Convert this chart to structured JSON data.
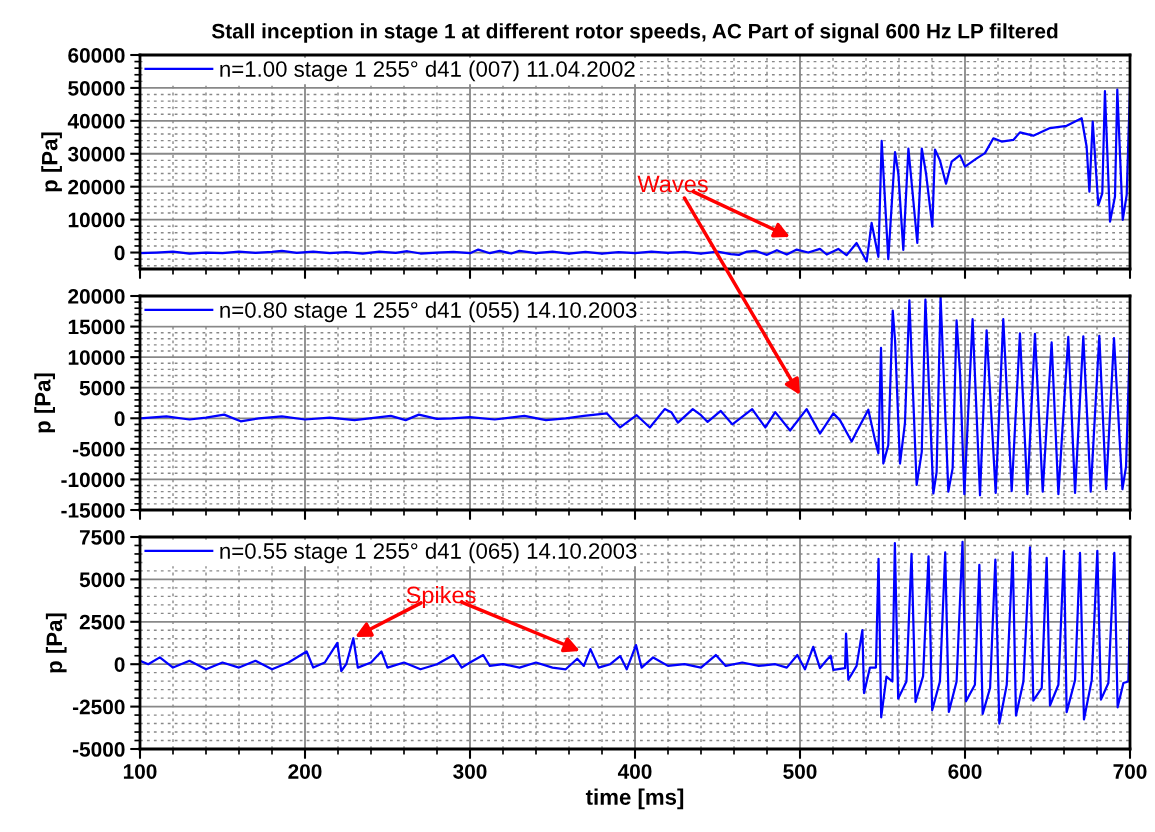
{
  "chart_data": [
    {
      "type": "line",
      "title": "Stall inception in stage 1 at different rotor speeds, AC Part of signal 600 Hz LP filtered",
      "ylabel": "p [Pa]",
      "xlim": [
        100,
        700
      ],
      "xticks": [
        100,
        200,
        300,
        400,
        500,
        600,
        700
      ],
      "ylim": [
        -5000,
        60000
      ],
      "yticks": [
        0,
        10000,
        20000,
        30000,
        40000,
        50000,
        60000
      ],
      "grid": true,
      "legend": "top left",
      "tick_labels": "y",
      "annotations": [
        "Waves"
      ],
      "series": [
        {
          "name": "n=1.00 stage 1 255° d41 (007) 11.04.2002",
          "color": "#0000ff",
          "x": [
            100,
            110,
            120,
            130,
            140,
            150,
            160,
            170,
            180,
            186,
            195,
            205,
            215,
            225,
            235,
            245,
            255,
            262,
            270,
            280,
            290,
            300,
            305,
            312,
            318,
            325,
            330,
            340,
            350,
            360,
            370,
            380,
            390,
            400,
            410,
            420,
            430,
            440,
            450,
            458,
            463,
            468,
            473,
            480,
            486,
            492,
            498,
            505,
            512.1,
            516.2,
            523.2,
            528.2,
            534.3,
            540.4,
            543.4,
            547.5,
            549.5,
            553.5,
            557.6,
            559.6,
            562.6,
            565.7,
            571.1,
            573.8,
            576.4,
            580.2,
            581.8,
            584.8,
            588.5,
            591.9,
            597.0,
            600.0,
            607.1,
            612.1,
            617.2,
            622.2,
            629.3,
            633.3,
            641.4,
            651.5,
            661.6,
            670.7,
            673.7,
            675.4,
            677.4,
            680.8,
            683.2,
            684.8,
            687.9,
            690.9,
            692.3,
            695.6,
            698.0,
            700.0
          ],
          "values": [
            -200,
            0,
            300,
            -300,
            0,
            -200,
            300,
            -100,
            200,
            500,
            -100,
            300,
            -200,
            100,
            -300,
            300,
            -100,
            400,
            -300,
            0,
            200,
            -200,
            900,
            -200,
            500,
            -300,
            500,
            -200,
            300,
            -300,
            200,
            -300,
            100,
            -200,
            300,
            -100,
            200,
            -300,
            300,
            -500,
            -700,
            300,
            500,
            -700,
            700,
            -600,
            900,
            0,
            1100,
            -600,
            1100,
            -800,
            2900,
            -2700,
            9000,
            -1300,
            33900,
            -2000,
            30500,
            24000,
            800,
            31600,
            2900,
            31600,
            24000,
            7900,
            31300,
            28000,
            20900,
            27600,
            29600,
            26100,
            28600,
            30200,
            34700,
            33700,
            34200,
            36500,
            35500,
            37800,
            38500,
            40800,
            32200,
            18500,
            39800,
            14400,
            18000,
            49000,
            9400,
            17000,
            49500,
            9900,
            17500,
            50000
          ]
        }
      ]
    },
    {
      "type": "line",
      "ylabel": "p [Pa]",
      "xlim": [
        100,
        700
      ],
      "xticks": [
        100,
        200,
        300,
        400,
        500,
        600,
        700
      ],
      "ylim": [
        -15000,
        20000
      ],
      "yticks": [
        -15000,
        -10000,
        -5000,
        0,
        5000,
        10000,
        15000,
        20000
      ],
      "grid": true,
      "legend": "top left",
      "tick_labels": "y",
      "series": [
        {
          "name": "n=0.80 stage 1 255° d41 (055) 14.10.2003",
          "color": "#0000ff",
          "x": [
            100,
            116,
            130,
            140,
            151,
            161,
            172,
            186,
            200,
            215,
            230,
            252,
            261,
            269,
            280,
            289,
            300,
            315,
            333,
            346,
            358,
            369,
            383,
            391,
            401,
            409,
            418,
            422,
            426,
            435,
            440,
            444,
            452,
            459,
            471,
            479,
            485,
            494,
            504,
            512.1,
            520.2,
            524.2,
            531.3,
            534.3,
            541.4,
            545.5,
            547.5,
            549.1,
            550.5,
            553.5,
            556.2,
            557.6,
            560.6,
            563.6,
            566.3,
            570.7,
            573.8,
            576.0,
            580.8,
            582.8,
            585.2,
            589.9,
            592.5,
            594.9,
            597.0,
            599.6,
            604.6,
            609.1,
            613.1,
            618.6,
            623.2,
            628.3,
            633.3,
            637.8,
            642.4,
            647.1,
            652.5,
            656.6,
            662.6,
            666.7,
            671.7,
            676.2,
            681.4,
            685.5,
            690.3,
            695.4,
            697.6,
            700.0
          ],
          "values": [
            0,
            300,
            -200,
            100,
            600,
            -500,
            0,
            300,
            -200,
            100,
            -300,
            400,
            -300,
            600,
            -100,
            0,
            200,
            -200,
            400,
            -300,
            0,
            400,
            800,
            -1500,
            500,
            -1500,
            1500,
            1000,
            -700,
            1500,
            500,
            -600,
            1200,
            -1000,
            1500,
            -1500,
            1000,
            -2000,
            1500,
            -2500,
            800,
            -300,
            -3800,
            -2200,
            1400,
            -3600,
            -5700,
            11500,
            -7400,
            -4400,
            17600,
            12800,
            -7400,
            -800,
            19300,
            -10900,
            -5500,
            19400,
            -12300,
            -8800,
            19900,
            -12000,
            -8200,
            16000,
            7400,
            -12400,
            16200,
            -12600,
            14400,
            -12200,
            16200,
            -11900,
            13900,
            -12400,
            13800,
            -12000,
            12400,
            -12400,
            13300,
            -12200,
            13400,
            -12000,
            13500,
            -11600,
            13100,
            -11600,
            -7900,
            13100
          ]
        }
      ]
    },
    {
      "type": "line",
      "xlabel": "time [ms]",
      "ylabel": "p [Pa]",
      "xlim": [
        100,
        700
      ],
      "xticks": [
        100,
        200,
        300,
        400,
        500,
        600,
        700
      ],
      "ylim": [
        -5000,
        7500
      ],
      "yticks": [
        -5000,
        -2500,
        0,
        2500,
        5000,
        7500
      ],
      "grid": true,
      "legend": "top left",
      "annotations": [
        "Spikes"
      ],
      "series": [
        {
          "name": "n=0.55 stage 1 255° d41 (065) 14.10.2003",
          "color": "#0000ff",
          "x": [
            100,
            105,
            112,
            120,
            130,
            140,
            150,
            160,
            170,
            180,
            190,
            201,
            205,
            212,
            219.6,
            222,
            225,
            229.3,
            232,
            240,
            246.3,
            250,
            260,
            270,
            280,
            290,
            295,
            300,
            308,
            312,
            320,
            330,
            340,
            350,
            358,
            365,
            369,
            373,
            378,
            385,
            391,
            395,
            400.6,
            404,
            411,
            420,
            430,
            440,
            449,
            455,
            465,
            475,
            485,
            492,
            498.4,
            503,
            508,
            512.1,
            516.2,
            518.6,
            520.2,
            527.3,
            527.9,
            529.3,
            534.3,
            537.8,
            538.8,
            542.4,
            546.0,
            547.6,
            549.2,
            552.4,
            556.0,
            557.5,
            559.5,
            564.5,
            567.6,
            570.0,
            574.6,
            577.9,
            580.1,
            584.8,
            588.0,
            590.2,
            594.9,
            598.5,
            600.6,
            606.0,
            608.7,
            610.7,
            615.2,
            618.4,
            620.8,
            625.3,
            628.9,
            630.9,
            635.4,
            639.4,
            641.4,
            646.5,
            649.5,
            651.5,
            656.6,
            660.0,
            661.6,
            666.7,
            669.7,
            672.1,
            676.8,
            680.2,
            682.4,
            686.9,
            690.5,
            692.5,
            696.0,
            699.0,
            700.0
          ],
          "values": [
            200,
            0,
            400,
            -200,
            200,
            -300,
            100,
            -200,
            200,
            -300,
            100,
            750,
            -200,
            100,
            1260,
            -400,
            0,
            1530,
            -200,
            100,
            750,
            -200,
            100,
            -300,
            0,
            540,
            -200,
            100,
            540,
            -100,
            0,
            -200,
            100,
            -200,
            -300,
            320,
            -100,
            890,
            -200,
            0,
            480,
            -300,
            1130,
            -200,
            400,
            -100,
            0,
            -200,
            540,
            -100,
            100,
            -100,
            0,
            -200,
            540,
            -300,
            1020,
            -230,
            250,
            500,
            -330,
            -230,
            1800,
            -920,
            -100,
            2010,
            -1700,
            -200,
            -200,
            6210,
            -3130,
            -730,
            -1020,
            7140,
            -2030,
            -1020,
            6500,
            -2230,
            -700,
            6360,
            -2720,
            -1020,
            6590,
            -2810,
            -1020,
            7220,
            -2190,
            -1210,
            5860,
            -2930,
            -1400,
            6170,
            -3500,
            -1210,
            6590,
            -3030,
            -1020,
            6890,
            -2150,
            -1400,
            6270,
            -2440,
            -1210,
            6690,
            -2830,
            -940,
            6560,
            -3260,
            -940,
            6690,
            -2090,
            -1110,
            6560,
            -2540,
            -1110,
            -1020,
            2980
          ]
        }
      ]
    }
  ]
}
